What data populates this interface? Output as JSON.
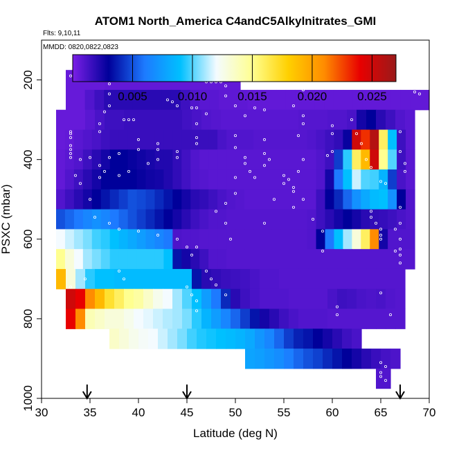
{
  "chart_data": {
    "type": "heatmap",
    "title": "ATOM1 North_America C4andC5Alkylnitrates_GMI",
    "subtitle_flights": "Flts: 9,10,11",
    "subtitle_dates": "MMDD: 0820,0822,0823",
    "xlabel": "Latitude (deg N)",
    "ylabel": "PSXC (mbar)",
    "xlim": [
      30,
      70
    ],
    "ylim": [
      1000,
      100
    ],
    "xticks": [
      "30",
      "35",
      "40",
      "45",
      "50",
      "55",
      "60",
      "65",
      "70"
    ],
    "yticks": [
      "200",
      "400",
      "600",
      "800",
      "1000"
    ],
    "colorbar": {
      "range": [
        0,
        0.027
      ],
      "ticks": [
        "0.005",
        "0.010",
        "0.015",
        "0.020",
        "0.025"
      ],
      "colors": [
        "#7a1fe6",
        "#00009a",
        "#1d7aff",
        "#00c0ff",
        "#f4fbff",
        "#ffff90",
        "#ffd000",
        "#ff8c00",
        "#e80000",
        "#9a1a1a"
      ]
    },
    "flight_markers_lat": [
      34.7,
      45,
      67
    ],
    "rows": [
      {
        "p": 200,
        "x0": 32.5,
        "x1": 50.5,
        "values": [
          0.0005,
          0.0005,
          0.0005,
          0.0005,
          0.0006,
          0.0006,
          0.0006,
          0.0006,
          0.0006,
          0.0006,
          0.0006,
          0.0006,
          0.0006,
          0.0006,
          0.0006,
          0.0006,
          0.0006,
          0.0006
        ]
      },
      {
        "p": 250,
        "x0": 32.5,
        "x1": 70,
        "values": [
          0.0005,
          0.0005,
          0.001,
          0.0015,
          0.002,
          0.002,
          0.002,
          0.002,
          0.002,
          0.002,
          0.002,
          0.002,
          0.0015,
          0.001,
          0.0008,
          0.0008,
          0.0007,
          0.0007,
          0.0007,
          0.0006,
          0.0006,
          0.0006,
          0.0006,
          0.0006,
          0.0006,
          0.0006,
          0.0006,
          0.0006,
          0.0006,
          0.0006,
          0.0006,
          0.0006,
          0.0006,
          0.0006,
          0.0006,
          0.0006,
          0.0006,
          0.0006
        ]
      },
      {
        "p": 300,
        "x0": 31.5,
        "x1": 68.5,
        "values": [
          0.0005,
          0.0005,
          0.0005,
          0.0008,
          0.0012,
          0.0015,
          0.0015,
          0.0016,
          0.0016,
          0.0016,
          0.0016,
          0.0016,
          0.0016,
          0.0014,
          0.0012,
          0.001,
          0.0009,
          0.0008,
          0.0008,
          0.0008,
          0.0008,
          0.0008,
          0.0008,
          0.0008,
          0.0008,
          0.0009,
          0.0009,
          0.0009,
          0.001,
          0.001,
          0.0012,
          0.0025,
          0.003,
          0.002,
          0.0015,
          0.001,
          0.0008
        ]
      },
      {
        "p": 350,
        "x0": 31.5,
        "x1": 68.5,
        "values": [
          0.0005,
          0.0006,
          0.0008,
          0.001,
          0.0012,
          0.0015,
          0.0016,
          0.0016,
          0.0016,
          0.0016,
          0.0016,
          0.0016,
          0.0016,
          0.0016,
          0.0016,
          0.0016,
          0.0016,
          0.0016,
          0.0012,
          0.001,
          0.001,
          0.001,
          0.0009,
          0.0009,
          0.0009,
          0.0009,
          0.0009,
          0.0009,
          0.001,
          0.0012,
          0.0015,
          0.0018,
          0.0028,
          0.025,
          0.023,
          0.026,
          0.016,
          0.009,
          0.0015,
          0.0008
        ]
      },
      {
        "p": 400,
        "x0": 31.5,
        "x1": 68.5,
        "values": [
          0.0006,
          0.0008,
          0.001,
          0.0015,
          0.002,
          0.0025,
          0.003,
          0.003,
          0.0028,
          0.0026,
          0.0024,
          0.0022,
          0.0022,
          0.0018,
          0.0014,
          0.001,
          0.0008,
          0.0008,
          0.0008,
          0.0008,
          0.0008,
          0.0008,
          0.0008,
          0.0008,
          0.0008,
          0.0008,
          0.0008,
          0.0008,
          0.0008,
          0.001,
          0.0015,
          0.0045,
          0.0095,
          0.016,
          0.019,
          0.025,
          0.015,
          0.01,
          0.0015,
          0.0008
        ]
      },
      {
        "p": 450,
        "x0": 31.5,
        "x1": 68.5,
        "values": [
          0.0006,
          0.001,
          0.0015,
          0.002,
          0.0025,
          0.003,
          0.003,
          0.003,
          0.003,
          0.0028,
          0.0026,
          0.0025,
          0.0022,
          0.0018,
          0.0014,
          0.001,
          0.0009,
          0.0008,
          0.0008,
          0.0008,
          0.0008,
          0.0008,
          0.0008,
          0.0008,
          0.0008,
          0.0008,
          0.0008,
          0.0008,
          0.0008,
          0.001,
          0.0025,
          0.006,
          0.009,
          0.0115,
          0.01,
          0.0098,
          0.0085,
          0.0045,
          0.0012,
          0.0008
        ]
      },
      {
        "p": 500,
        "x0": 31.5,
        "x1": 68.5,
        "values": [
          0.001,
          0.0015,
          0.002,
          0.0025,
          0.003,
          0.0035,
          0.004,
          0.0045,
          0.005,
          0.0048,
          0.0045,
          0.004,
          0.0035,
          0.003,
          0.0025,
          0.002,
          0.0018,
          0.0015,
          0.0012,
          0.001,
          0.0009,
          0.0008,
          0.0008,
          0.0008,
          0.0008,
          0.0008,
          0.0008,
          0.0008,
          0.0008,
          0.0015,
          0.003,
          0.004,
          0.0055,
          0.007,
          0.008,
          0.0088,
          0.009,
          0.007,
          0.003,
          0.001
        ]
      },
      {
        "p": 550,
        "x0": 31.5,
        "x1": 68.5,
        "values": [
          0.005,
          0.0055,
          0.006,
          0.0065,
          0.007,
          0.0065,
          0.006,
          0.0055,
          0.005,
          0.0045,
          0.004,
          0.0035,
          0.003,
          0.0025,
          0.002,
          0.0015,
          0.0012,
          0.001,
          0.001,
          0.0009,
          0.0009,
          0.0009,
          0.0009,
          0.0009,
          0.0009,
          0.0009,
          0.0009,
          0.0009,
          0.001,
          0.0015,
          0.002,
          0.0025,
          0.003,
          0.0025,
          0.002,
          0.0018,
          0.0017,
          0.0015,
          0.0012,
          0.001
        ]
      },
      {
        "p": 600,
        "x0": 31.5,
        "x1": 68.5,
        "values": [
          0.012,
          0.0115,
          0.011,
          0.0105,
          0.0098,
          0.0095,
          0.009,
          0.0085,
          0.008,
          0.0075,
          0.007,
          0.0065,
          0.006,
          0.0011,
          0.001,
          0.001,
          0.0009,
          0.0009,
          0.0009,
          0.0009,
          0.0009,
          0.0009,
          0.0009,
          0.0009,
          0.0009,
          0.0009,
          0.0009,
          0.0009,
          0.001,
          0.003,
          0.006,
          0.009,
          0.011,
          0.013,
          0.016,
          0.021,
          0.0025,
          0.001,
          0.001,
          0.001
        ]
      },
      {
        "p": 650,
        "x0": 31.5,
        "x1": 68.5,
        "values": [
          0.015,
          0.013,
          0.012,
          0.011,
          0.0105,
          0.01,
          0.0095,
          0.0095,
          0.0095,
          0.0095,
          0.0095,
          0.0095,
          0.009,
          0.0035,
          0.0025,
          0.002,
          0.0015,
          0.001,
          0.001,
          0.0009,
          0.0009,
          0.0009,
          0.0009,
          0.0009,
          0.0009,
          0.0009,
          0.0009,
          0.0009,
          0.0009,
          0.0009,
          0.0009,
          0.0009,
          0.0009,
          0.0009,
          0.0009,
          0.0009,
          0.0009,
          0.0009,
          0.0009,
          0.0009
        ]
      },
      {
        "p": 700,
        "x0": 31.5,
        "x1": 67.5,
        "values": [
          0.019,
          0.013,
          0.011,
          0.0095,
          0.009,
          0.009,
          0.0088,
          0.0088,
          0.0088,
          0.0088,
          0.0088,
          0.0088,
          0.0088,
          0.0088,
          0.0035,
          0.002,
          0.0018,
          0.0016,
          0.0015,
          0.0014,
          0.0012,
          0.001,
          0.001,
          0.0009,
          0.0009,
          0.0009,
          0.0009,
          0.0009,
          0.0009,
          0.0009,
          0.0009,
          0.0009,
          0.0009,
          0.0009,
          0.0009,
          0.0009
        ]
      },
      {
        "p": 750,
        "x0": 32.5,
        "x1": 67.5,
        "values": [
          0.025,
          0.024,
          0.021,
          0.019,
          0.017,
          0.016,
          0.015,
          0.0145,
          0.0135,
          0.0125,
          0.012,
          0.011,
          0.01,
          0.009,
          0.0075,
          0.006,
          0.004,
          0.002,
          0.0015,
          0.0012,
          0.001,
          0.001,
          0.001,
          0.0009,
          0.0009,
          0.0009,
          0.0009,
          0.0012,
          0.0015,
          0.0014,
          0.0012,
          0.0011,
          0.0012,
          0.001,
          0.0009
        ]
      },
      {
        "p": 800,
        "x0": 32.5,
        "x1": 67.5,
        "values": [
          0.024,
          0.021,
          0.014,
          0.0135,
          0.013,
          0.013,
          0.0125,
          0.012,
          0.0118,
          0.0115,
          0.0112,
          0.011,
          0.0105,
          0.0095,
          0.0085,
          0.0075,
          0.0065,
          0.0055,
          0.0045,
          0.0035,
          0.0025,
          0.002,
          0.0015,
          0.0012,
          0.001,
          0.001,
          0.001,
          0.0009,
          0.0009,
          0.0009,
          0.0009,
          0.0009,
          0.0009,
          0.0009,
          0.0009
        ]
      },
      {
        "p": 850,
        "x0": 37,
        "x1": 63,
        "values": [
          0.0135,
          0.013,
          0.0125,
          0.0122,
          0.012,
          0.0115,
          0.011,
          0.0105,
          0.0098,
          0.0094,
          0.0092,
          0.009,
          0.0088,
          0.0085,
          0.008,
          0.0072,
          0.0065,
          0.0055,
          0.0045,
          0.0038,
          0.0035,
          0.003,
          0.0025,
          0.002,
          0.0015,
          0.0012
        ]
      },
      {
        "p": 900,
        "x0": 51,
        "x1": 67,
        "values": [
          0.0078,
          0.0076,
          0.0072,
          0.0068,
          0.0062,
          0.0055,
          0.005,
          0.0046,
          0.004,
          0.0035,
          0.003,
          0.0025,
          0.002,
          0.0016,
          0.0013,
          0.0011
        ]
      },
      {
        "p": 950,
        "x0": 64.5,
        "x1": 66,
        "values": [
          0.001
        ]
      }
    ],
    "points": [
      [
        33,
        190
      ],
      [
        33.5,
        190
      ],
      [
        34,
        190
      ],
      [
        34.5,
        190
      ],
      [
        35,
        200
      ],
      [
        36.5,
        200
      ],
      [
        37,
        210
      ],
      [
        37,
        235
      ],
      [
        37,
        265
      ],
      [
        36.5,
        280
      ],
      [
        36,
        310
      ],
      [
        36,
        330
      ],
      [
        33,
        330
      ],
      [
        33,
        335
      ],
      [
        33,
        345
      ],
      [
        33,
        365
      ],
      [
        33,
        375
      ],
      [
        33,
        385
      ],
      [
        33,
        395
      ],
      [
        35,
        395
      ],
      [
        37,
        395
      ],
      [
        38.5,
        300
      ],
      [
        39,
        300
      ],
      [
        39.5,
        300
      ],
      [
        40,
        350
      ],
      [
        42,
        360
      ],
      [
        42,
        375
      ],
      [
        43,
        250
      ],
      [
        43.5,
        255
      ],
      [
        44,
        265
      ],
      [
        45.5,
        270
      ],
      [
        46,
        270
      ],
      [
        46,
        310
      ],
      [
        46,
        345
      ],
      [
        46,
        360
      ],
      [
        44,
        380
      ],
      [
        44,
        395
      ],
      [
        42,
        400
      ],
      [
        41,
        410
      ],
      [
        40,
        375
      ],
      [
        38,
        385
      ],
      [
        36,
        415
      ],
      [
        36.5,
        430
      ],
      [
        39,
        430
      ],
      [
        38,
        440
      ],
      [
        36,
        445
      ],
      [
        34,
        400
      ],
      [
        33.5,
        440
      ],
      [
        34,
        460
      ],
      [
        35,
        500
      ],
      [
        35.5,
        545
      ],
      [
        37,
        560
      ],
      [
        38,
        575
      ],
      [
        40,
        580
      ],
      [
        42,
        590
      ],
      [
        44,
        600
      ],
      [
        45,
        620
      ],
      [
        46,
        620
      ],
      [
        45.5,
        640
      ],
      [
        47,
        680
      ],
      [
        47.5,
        700
      ],
      [
        38,
        680
      ],
      [
        38.5,
        700
      ],
      [
        34.5,
        700
      ],
      [
        33,
        720
      ],
      [
        45,
        720
      ],
      [
        45.5,
        740
      ],
      [
        46,
        755
      ],
      [
        46,
        780
      ],
      [
        47,
        285
      ],
      [
        47,
        205
      ],
      [
        47.5,
        205
      ],
      [
        48,
        205
      ],
      [
        48.5,
        205
      ],
      [
        49,
        215
      ],
      [
        49,
        240
      ],
      [
        50,
        265
      ],
      [
        51,
        290
      ],
      [
        50,
        340
      ],
      [
        50,
        370
      ],
      [
        51,
        395
      ],
      [
        51,
        410
      ],
      [
        51.5,
        430
      ],
      [
        50,
        445
      ],
      [
        50,
        485
      ],
      [
        49,
        510
      ],
      [
        48,
        530
      ],
      [
        49,
        560
      ],
      [
        49.5,
        600
      ],
      [
        48,
        715
      ],
      [
        49,
        740
      ],
      [
        52,
        270
      ],
      [
        53,
        275
      ],
      [
        53,
        350
      ],
      [
        53,
        385
      ],
      [
        53.5,
        400
      ],
      [
        53,
        415
      ],
      [
        52,
        445
      ],
      [
        53,
        560
      ],
      [
        54,
        500
      ],
      [
        55,
        440
      ],
      [
        55,
        460
      ],
      [
        55.5,
        450
      ],
      [
        56,
        470
      ],
      [
        56,
        480
      ],
      [
        55,
        220
      ],
      [
        55.5,
        220
      ],
      [
        56,
        220
      ],
      [
        56.5,
        220
      ],
      [
        57,
        225
      ],
      [
        56,
        265
      ],
      [
        57,
        290
      ],
      [
        57,
        310
      ],
      [
        56.5,
        340
      ],
      [
        57,
        400
      ],
      [
        56.5,
        430
      ],
      [
        57,
        500
      ],
      [
        56,
        520
      ],
      [
        58,
        550
      ],
      [
        59,
        580
      ],
      [
        59,
        630
      ],
      [
        60,
        220
      ],
      [
        60.5,
        220
      ],
      [
        61,
        220
      ],
      [
        60,
        315
      ],
      [
        60,
        335
      ],
      [
        60,
        380
      ],
      [
        59.5,
        390
      ],
      [
        62,
        300
      ],
      [
        62.5,
        335
      ],
      [
        63,
        360
      ],
      [
        63.5,
        400
      ],
      [
        64,
        420
      ],
      [
        65,
        455
      ],
      [
        65.5,
        460
      ],
      [
        67,
        330
      ],
      [
        67,
        380
      ],
      [
        67.5,
        410
      ],
      [
        67.5,
        430
      ],
      [
        67,
        520
      ],
      [
        67,
        560
      ],
      [
        66.5,
        575
      ],
      [
        67,
        600
      ],
      [
        67,
        625
      ],
      [
        67,
        640
      ],
      [
        67,
        660
      ],
      [
        68.5,
        230
      ],
      [
        69,
        235
      ],
      [
        65,
        735
      ],
      [
        60.5,
        770
      ],
      [
        60.5,
        790
      ],
      [
        65,
        910
      ],
      [
        65.5,
        920
      ],
      [
        65,
        935
      ],
      [
        65,
        945
      ],
      [
        65.5,
        955
      ],
      [
        64,
        530
      ],
      [
        64,
        545
      ],
      [
        64.5,
        560
      ],
      [
        65,
        575
      ],
      [
        65,
        590
      ],
      [
        65,
        600
      ],
      [
        66.5,
        630
      ],
      [
        67,
        850
      ],
      [
        66,
        790
      ]
    ]
  }
}
